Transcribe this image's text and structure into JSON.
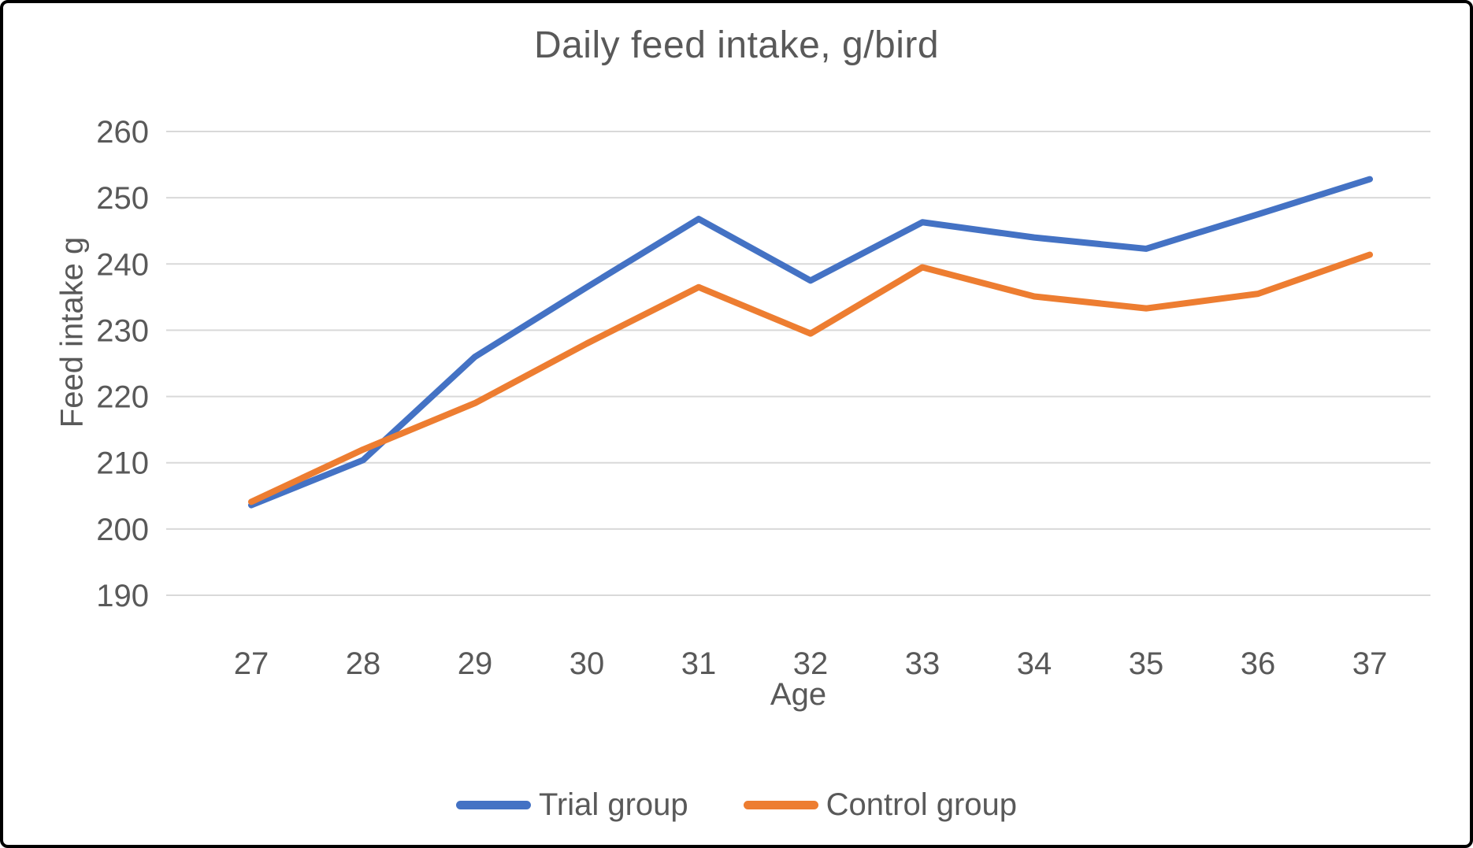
{
  "title": "Daily feed intake, g/bird",
  "chart_data": {
    "type": "line",
    "title": "Daily feed intake, g/bird",
    "xlabel": "Age",
    "ylabel": "Feed intake g",
    "x": [
      27,
      28,
      29,
      30,
      31,
      32,
      33,
      34,
      35,
      36,
      37
    ],
    "series": [
      {
        "name": "Trial group",
        "color": "#4472C4",
        "values": [
          203.6,
          210.4,
          226.0,
          236.5,
          246.8,
          237.5,
          246.3,
          244.0,
          242.3,
          247.5,
          252.8
        ]
      },
      {
        "name": "Control group",
        "color": "#ED7D31",
        "values": [
          204.1,
          212.0,
          219.0,
          228.0,
          236.5,
          229.5,
          239.5,
          235.1,
          233.3,
          235.5,
          241.4
        ]
      }
    ],
    "ylim": [
      190,
      260
    ],
    "ytick_step": 10,
    "grid": "horizontal",
    "gridline_color": "#D9D9D9",
    "text_color": "#595959",
    "legend_position": "bottom"
  }
}
